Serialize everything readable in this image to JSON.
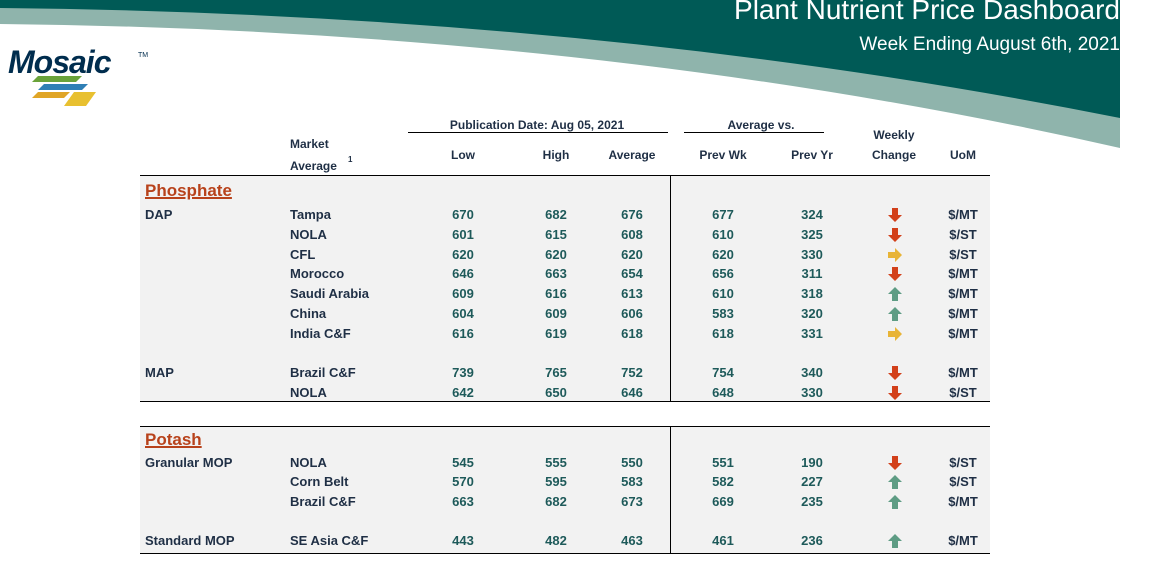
{
  "header": {
    "title": "Plant Nutrient Price Dashboard",
    "subtitle": "Week Ending August 6th, 2021"
  },
  "logo": {
    "text": "Mosaic",
    "trademark": "TM"
  },
  "colors": {
    "banner_dark": "#005a56",
    "banner_light": "#8fb4ac",
    "section_title": "#b8421b",
    "down_arrow": "#d2401a",
    "up_arrow": "#5e9c84",
    "flat_arrow": "#e8b437"
  },
  "table": {
    "group_publication": "Publication Date:  Aug 05, 2021",
    "group_average": "Average  vs.",
    "col_market_line1": "Market",
    "col_market_line2": "Average",
    "col_market_footnote": "1",
    "col_low": "Low",
    "col_high": "High",
    "col_average": "Average",
    "col_prev_wk": "Prev Wk",
    "col_prev_yr": "Prev Yr",
    "col_weekly_line1": "Weekly",
    "col_weekly_line2": "Change",
    "col_uom": "UoM"
  },
  "sections": [
    {
      "title": "Phosphate",
      "rows": [
        {
          "product": "DAP",
          "market": "Tampa",
          "low": "670",
          "high": "682",
          "average": "676",
          "prev_wk": "677",
          "prev_yr": "324",
          "change": "down",
          "uom": "$/MT"
        },
        {
          "product": "",
          "market": "NOLA",
          "low": "601",
          "high": "615",
          "average": "608",
          "prev_wk": "610",
          "prev_yr": "325",
          "change": "down",
          "uom": "$/ST"
        },
        {
          "product": "",
          "market": "CFL",
          "low": "620",
          "high": "620",
          "average": "620",
          "prev_wk": "620",
          "prev_yr": "330",
          "change": "flat",
          "uom": "$/ST"
        },
        {
          "product": "",
          "market": "Morocco",
          "low": "646",
          "high": "663",
          "average": "654",
          "prev_wk": "656",
          "prev_yr": "311",
          "change": "down",
          "uom": "$/MT"
        },
        {
          "product": "",
          "market": "Saudi Arabia",
          "low": "609",
          "high": "616",
          "average": "613",
          "prev_wk": "610",
          "prev_yr": "318",
          "change": "up",
          "uom": "$/MT"
        },
        {
          "product": "",
          "market": "China",
          "low": "604",
          "high": "609",
          "average": "606",
          "prev_wk": "583",
          "prev_yr": "320",
          "change": "up",
          "uom": "$/MT"
        },
        {
          "product": "",
          "market": "India C&F",
          "low": "616",
          "high": "619",
          "average": "618",
          "prev_wk": "618",
          "prev_yr": "331",
          "change": "flat",
          "uom": "$/MT"
        },
        {
          "product": "MAP",
          "market": "Brazil C&F",
          "low": "739",
          "high": "765",
          "average": "752",
          "prev_wk": "754",
          "prev_yr": "340",
          "change": "down",
          "uom": "$/MT"
        },
        {
          "product": "",
          "market": "NOLA",
          "low": "642",
          "high": "650",
          "average": "646",
          "prev_wk": "648",
          "prev_yr": "330",
          "change": "down",
          "uom": "$/ST"
        }
      ]
    },
    {
      "title": "Potash",
      "rows": [
        {
          "product": "Granular MOP",
          "market": "NOLA",
          "low": "545",
          "high": "555",
          "average": "550",
          "prev_wk": "551",
          "prev_yr": "190",
          "change": "down",
          "uom": "$/ST"
        },
        {
          "product": "",
          "market": "Corn Belt",
          "low": "570",
          "high": "595",
          "average": "583",
          "prev_wk": "582",
          "prev_yr": "227",
          "change": "up",
          "uom": "$/ST"
        },
        {
          "product": "",
          "market": "Brazil C&F",
          "low": "663",
          "high": "682",
          "average": "673",
          "prev_wk": "669",
          "prev_yr": "235",
          "change": "up",
          "uom": "$/MT"
        },
        {
          "product": "Standard MOP",
          "market": "SE Asia C&F",
          "low": "443",
          "high": "482",
          "average": "463",
          "prev_wk": "461",
          "prev_yr": "236",
          "change": "up",
          "uom": "$/MT"
        }
      ]
    }
  ]
}
